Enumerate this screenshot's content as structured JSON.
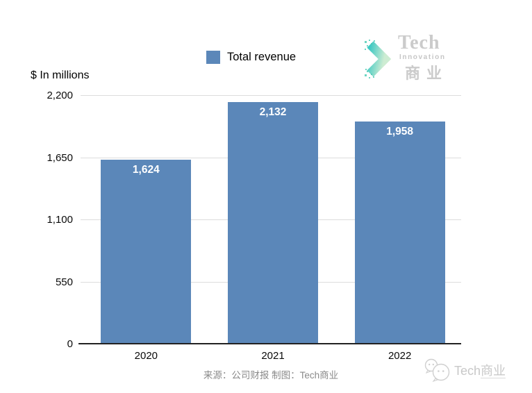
{
  "chart_data": {
    "type": "bar",
    "categories": [
      "2020",
      "2021",
      "2022"
    ],
    "series": [
      {
        "name": "Total revenue",
        "values": [
          1624,
          2132,
          1958
        ],
        "color": "#5b87b9"
      }
    ],
    "data_labels": [
      "1,624",
      "2,132",
      "1,958"
    ],
    "title": "",
    "xlabel": "",
    "ylabel": "$ In millions",
    "unit_label": "$ In millions",
    "ylim": [
      0,
      2200
    ],
    "yticks": [
      0,
      550,
      1100,
      1650,
      2200
    ],
    "ytick_labels": [
      "0",
      "550",
      "1,100",
      "1,650",
      "2,200"
    ],
    "grid": true,
    "gridline_color": "#dcdcdc",
    "axis_color": "#222222",
    "legend_position": "top-center"
  },
  "legend": {
    "items": [
      {
        "label": "Total revenue",
        "color": "#5b87b9"
      }
    ]
  },
  "brand": {
    "name_en": "Tech",
    "subtitle": "Innovation",
    "name_cn": "商业",
    "text_color": "#cbcbcb",
    "chevron_color_start": "#3cc8c3",
    "chevron_color_end": "#cdecd2"
  },
  "footer": {
    "source_text": "来源：公司财报 制图：Tech商业",
    "watermark": {
      "en": "Tech",
      "cn": "商业",
      "color": "#c8c8c8"
    }
  }
}
